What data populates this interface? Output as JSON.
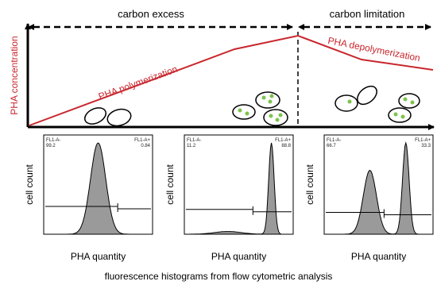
{
  "header": {
    "left_phase": "carbon excess",
    "right_phase": "carbon limitation"
  },
  "axis": {
    "y_label": "PHA concentration"
  },
  "curve": {
    "rise_label": "PHA polymerization",
    "fall_label": "PHA depolymerization"
  },
  "histograms": [
    {
      "y_label": "cell count",
      "x_label": "PHA quantity",
      "negative_gate": "FL1-A-",
      "negative_percent": 99.2,
      "positive_gate": "FL1-A+",
      "positive_percent": 0.84
    },
    {
      "y_label": "cell count",
      "x_label": "PHA quantity",
      "negative_gate": "FL1-A-",
      "negative_percent": 11.2,
      "positive_gate": "FL1-A+",
      "positive_percent": 88.8
    },
    {
      "y_label": "cell count",
      "x_label": "PHA quantity",
      "negative_gate": "FL1-A-",
      "negative_percent": 66.7,
      "positive_gate": "FL1-A+",
      "positive_percent": 33.3
    }
  ],
  "caption": "fluorescence histograms from flow cytometric analysis"
}
